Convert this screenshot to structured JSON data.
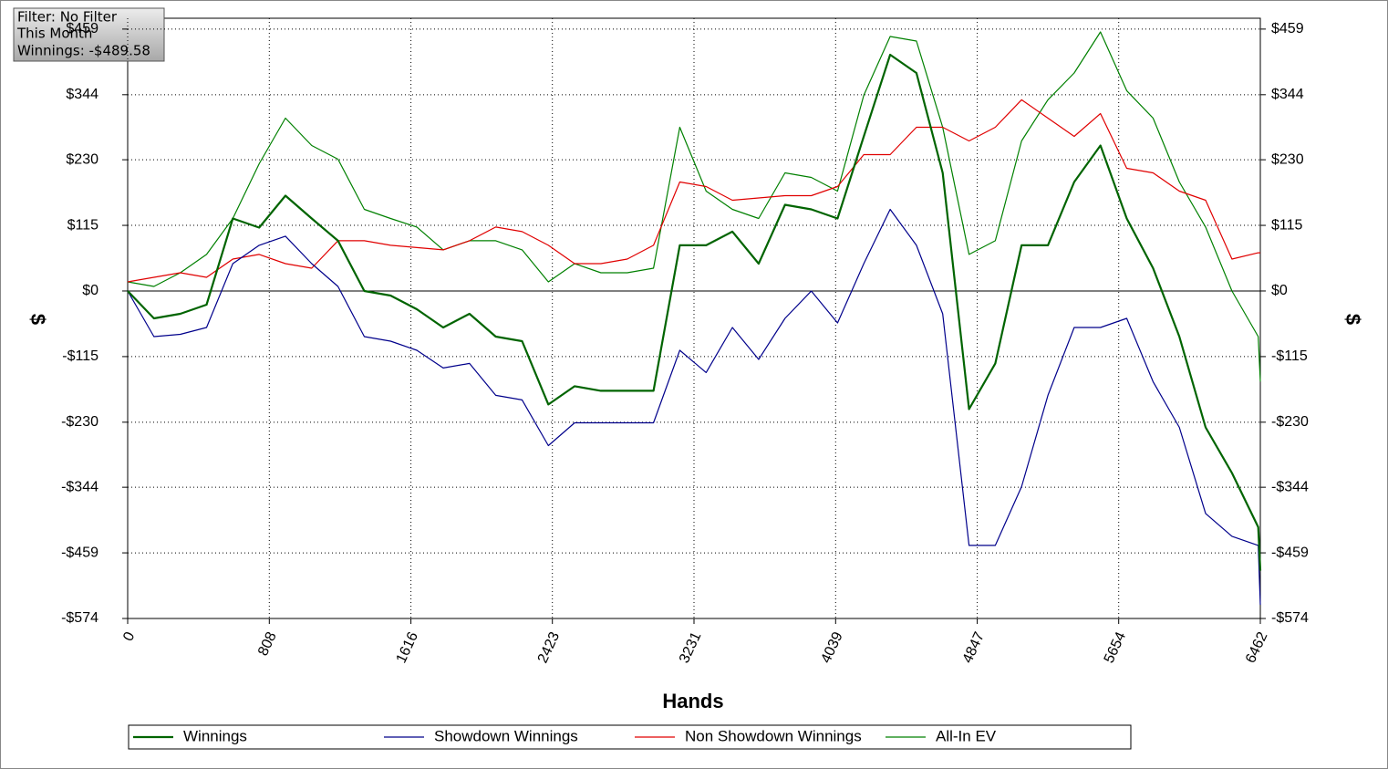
{
  "chart_data": {
    "type": "line",
    "annotations": [
      "Filter: No Filter",
      "This Month",
      "Winnings: -$489.58"
    ],
    "x_label": "Hands",
    "y_label": "$",
    "x": [
      0,
      150,
      300,
      450,
      600,
      750,
      900,
      1050,
      1200,
      1350,
      1500,
      1650,
      1800,
      1950,
      2100,
      2250,
      2400,
      2550,
      2700,
      2850,
      3000,
      3150,
      3300,
      3450,
      3600,
      3750,
      3900,
      4050,
      4200,
      4350,
      4500,
      4650,
      4800,
      4950,
      5100,
      5250,
      5400,
      5550,
      5700,
      5850,
      6000,
      6150,
      6300,
      6450,
      6462
    ],
    "series": [
      {
        "name": "Winnings",
        "color": "#006400",
        "values": [
          0,
          -48,
          -40,
          -24,
          127,
          111,
          167,
          127,
          88,
          0,
          -8,
          -32,
          -64,
          -40,
          -80,
          -88,
          -199,
          -167,
          -175,
          -175,
          -175,
          80,
          80,
          104,
          48,
          151,
          143,
          127,
          271,
          414,
          382,
          207,
          -207,
          -127,
          80,
          80,
          191,
          255,
          127,
          40,
          -80,
          -239,
          -319,
          -414,
          -490
        ]
      },
      {
        "name": "Showdown Winnings",
        "color": "#00008b",
        "values": [
          0,
          -80,
          -76,
          -64,
          48,
          80,
          96,
          48,
          8,
          -80,
          -88,
          -104,
          -135,
          -127,
          -183,
          -191,
          -271,
          -231,
          -231,
          -231,
          -231,
          -104,
          -143,
          -64,
          -120,
          -48,
          0,
          -56,
          48,
          143,
          80,
          -40,
          -446,
          -446,
          -343,
          -183,
          -64,
          -64,
          -48,
          -159,
          -239,
          -390,
          -430,
          -446,
          -550
        ]
      },
      {
        "name": "Non Showdown Winnings",
        "color": "#e00000",
        "values": [
          16,
          24,
          32,
          24,
          56,
          64,
          48,
          40,
          88,
          88,
          80,
          76,
          72,
          88,
          112,
          104,
          80,
          48,
          48,
          56,
          80,
          191,
          183,
          159,
          163,
          167,
          167,
          183,
          239,
          239,
          287,
          287,
          263,
          287,
          335,
          303,
          271,
          311,
          215,
          207,
          175,
          159,
          56,
          67,
          67
        ]
      },
      {
        "name": "All-In EV",
        "color": "#008000",
        "values": [
          16,
          8,
          32,
          64,
          127,
          223,
          303,
          255,
          231,
          143,
          127,
          112,
          72,
          88,
          88,
          72,
          16,
          48,
          32,
          32,
          40,
          287,
          175,
          143,
          127,
          207,
          199,
          175,
          343,
          446,
          438,
          287,
          64,
          88,
          263,
          335,
          382,
          454,
          351,
          303,
          191,
          112,
          0,
          -80,
          -159
        ]
      }
    ],
    "xlim": [
      0,
      6462
    ],
    "xticks": [
      0,
      808,
      1616,
      2423,
      3231,
      4039,
      4847,
      5654,
      6462
    ],
    "ylim": [
      -574,
      478
    ],
    "yticks": [
      {
        "value": -574,
        "label": "-$574"
      },
      {
        "value": -459,
        "label": "-$459"
      },
      {
        "value": -344,
        "label": "-$344"
      },
      {
        "value": -230,
        "label": "-$230"
      },
      {
        "value": -115,
        "label": "-$115"
      },
      {
        "value": 0,
        "label": "$0"
      },
      {
        "value": 115,
        "label": "$115"
      },
      {
        "value": 230,
        "label": "$230"
      },
      {
        "value": 344,
        "label": "$344"
      },
      {
        "value": 459,
        "label": "$459"
      }
    ],
    "y2lim": [
      -574,
      478
    ],
    "y2ticks": [
      {
        "value": -574,
        "label": "-$574"
      },
      {
        "value": -459,
        "label": "-$459"
      },
      {
        "value": -344,
        "label": "-$344"
      },
      {
        "value": -230,
        "label": "-$230"
      },
      {
        "value": -115,
        "label": "-$115"
      },
      {
        "value": 0,
        "label": "$0"
      },
      {
        "value": 115,
        "label": "$115"
      },
      {
        "value": 230,
        "label": "$230"
      },
      {
        "value": 344,
        "label": "$344"
      },
      {
        "value": 459,
        "label": "$459"
      }
    ],
    "grid": true
  }
}
